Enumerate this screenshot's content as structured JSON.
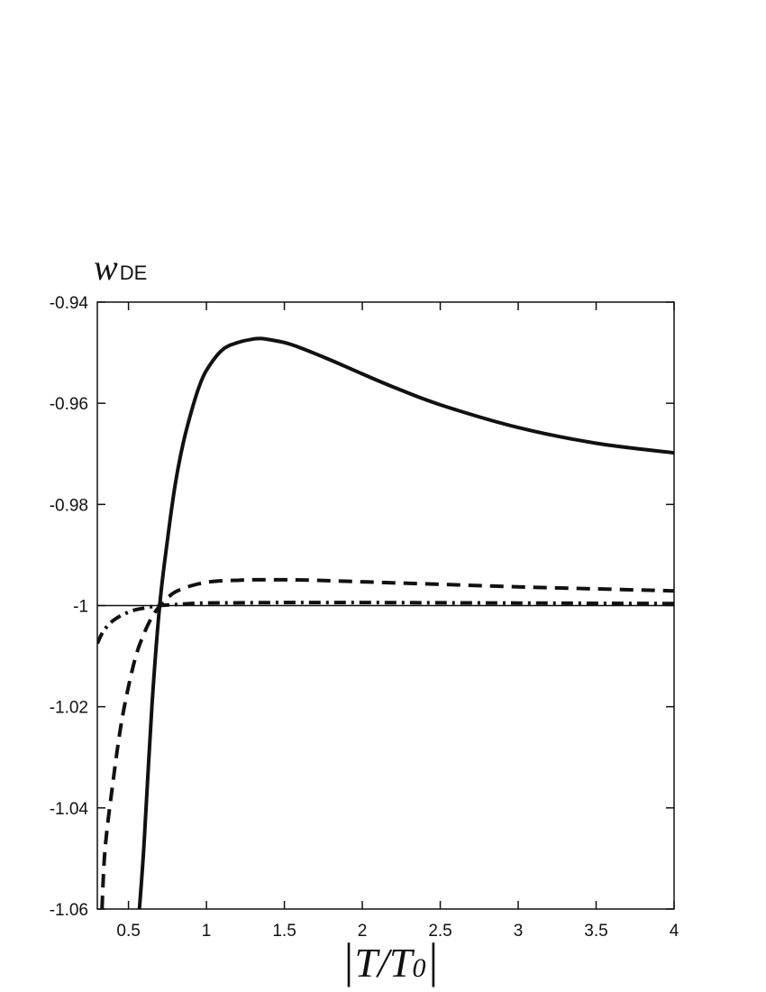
{
  "chart_data": {
    "type": "line",
    "ylabel": {
      "main": "w",
      "sub": "DE"
    },
    "xlabel": {
      "pre": "|",
      "main": "T",
      "slash": "/",
      "main2": "T",
      "sub": "0",
      "post": "|"
    },
    "xlim": [
      0.3,
      4
    ],
    "ylim": [
      -1.06,
      -0.94
    ],
    "xticks": [
      0.5,
      1,
      1.5,
      2,
      2.5,
      3,
      3.5,
      4
    ],
    "xtick_labels": [
      "0.5",
      "1",
      "1.5",
      "2",
      "2.5",
      "3",
      "3.5",
      "4"
    ],
    "yticks": [
      -0.94,
      -0.96,
      -0.98,
      -1,
      -1.02,
      -1.04,
      -1.06
    ],
    "ytick_labels": [
      "-0.94",
      "-0.96",
      "-0.98",
      "-1",
      "-1.02",
      "-1.04",
      "-1.06"
    ],
    "reference_line": {
      "y": -1
    },
    "grid": false,
    "series": [
      {
        "style": "solid",
        "x": [
          0.57,
          0.6,
          0.65,
          0.7,
          0.75,
          0.8,
          0.85,
          0.9,
          0.95,
          1.0,
          1.1,
          1.2,
          1.3,
          1.35,
          1.4,
          1.5,
          1.6,
          1.8,
          2.0,
          2.2,
          2.5,
          3.0,
          3.5,
          4.0
        ],
        "y": [
          -1.06,
          -1.047,
          -1.02,
          -1.0,
          -0.987,
          -0.976,
          -0.968,
          -0.962,
          -0.957,
          -0.9535,
          -0.9495,
          -0.948,
          -0.9473,
          -0.9472,
          -0.9474,
          -0.948,
          -0.949,
          -0.9515,
          -0.9542,
          -0.9568,
          -0.9603,
          -0.9648,
          -0.9679,
          -0.9698
        ]
      },
      {
        "style": "dashed",
        "x": [
          0.33,
          0.35,
          0.4,
          0.45,
          0.5,
          0.55,
          0.6,
          0.65,
          0.7,
          0.75,
          0.8,
          0.9,
          1.0,
          1.1,
          1.2,
          1.3,
          1.5,
          1.7,
          2.0,
          2.5,
          3.0,
          3.5,
          4.0
        ],
        "y": [
          -1.06,
          -1.048,
          -1.035,
          -1.024,
          -1.016,
          -1.0097,
          -1.0055,
          -1.0023,
          -1.0001,
          -0.9985,
          -0.9973,
          -0.9961,
          -0.9954,
          -0.9951,
          -0.995,
          -0.9949,
          -0.9949,
          -0.995,
          -0.9953,
          -0.9958,
          -0.9963,
          -0.9967,
          -0.9971
        ]
      },
      {
        "style": "dash-dot",
        "x": [
          0.3,
          0.33,
          0.36,
          0.4,
          0.45,
          0.5,
          0.55,
          0.6,
          0.65,
          0.7,
          0.8,
          0.9,
          1.0,
          1.5,
          2.0,
          3.0,
          4.0
        ],
        "y": [
          -1.0075,
          -1.0055,
          -1.0042,
          -1.003,
          -1.002,
          -1.0013,
          -1.0008,
          -1.0005,
          -1.0002,
          -1.0,
          -0.9998,
          -0.9996,
          -0.9995,
          -0.9994,
          -0.9994,
          -0.9995,
          -0.9996
        ]
      }
    ]
  }
}
